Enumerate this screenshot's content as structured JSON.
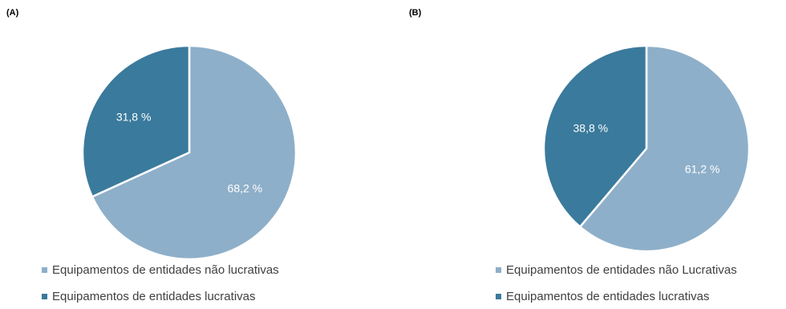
{
  "chart_data": [
    {
      "type": "pie",
      "panel_label": "(A)",
      "slices": [
        {
          "name": "Equipamentos de entidades não lucrativas",
          "value": 68.2,
          "label": "68,2 %",
          "color": "#8eafc9"
        },
        {
          "name": "Equipamentos de entidades lucrativas",
          "value": 31.8,
          "label": "31,8 %",
          "color": "#3a7a9c"
        }
      ],
      "legend": {
        "placement": "bottom-left",
        "items": [
          "Equipamentos de entidades não lucrativas",
          "Equipamentos de entidades lucrativas"
        ]
      }
    },
    {
      "type": "pie",
      "panel_label": "(B)",
      "slices": [
        {
          "name": "Equipamentos de entidades não Lucrativas",
          "value": 61.2,
          "label": "61,2 %",
          "color": "#8eafc9"
        },
        {
          "name": "Equipamentos de entidades lucrativas",
          "value": 38.8,
          "label": "38,8 %",
          "color": "#3a7a9c"
        }
      ],
      "legend": {
        "placement": "bottom-right",
        "items": [
          "Equipamentos de entidades não Lucrativas",
          "Equipamentos de entidades lucrativas"
        ]
      }
    }
  ]
}
